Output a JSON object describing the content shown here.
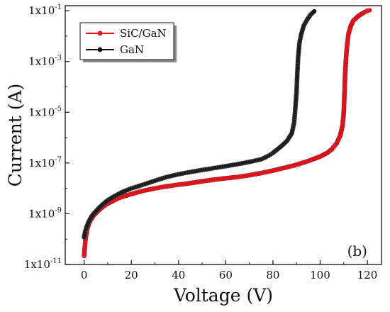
{
  "chart_data": {
    "type": "scatter",
    "xlabel": "Voltage (V)",
    "ylabel": "Current (A)",
    "xlim": [
      -8,
      126
    ],
    "ylim_log10": [
      -11,
      -0.8
    ],
    "y_scale": "log",
    "x_ticks": [
      0,
      20,
      40,
      60,
      80,
      100,
      120
    ],
    "x_tick_labels": [
      "0",
      "20",
      "40",
      "60",
      "80",
      "100",
      "120"
    ],
    "y_ticks_log10": [
      -11,
      -9,
      -7,
      -5,
      -3,
      -1
    ],
    "y_tick_labels": [
      {
        "base": "1x10",
        "exp": "-11"
      },
      {
        "base": "1x10",
        "exp": "-9"
      },
      {
        "base": "1x10",
        "exp": "-7"
      },
      {
        "base": "1x10",
        "exp": "-5"
      },
      {
        "base": "1x10",
        "exp": "-3"
      },
      {
        "base": "1x10",
        "exp": "-1"
      }
    ],
    "panel_label": "(b)",
    "legend_position": "top-left",
    "series": [
      {
        "name": "SiC/GaN",
        "color": "#e8141e",
        "points": [
          [
            0,
            2.2e-11
          ],
          [
            0.3,
            5e-11
          ],
          [
            0.6,
            1e-10
          ],
          [
            1,
            1.8e-10
          ],
          [
            1.5,
            2.8e-10
          ],
          [
            2,
            4e-10
          ],
          [
            3,
            6e-10
          ],
          [
            4,
            8.5e-10
          ],
          [
            6,
            1.3e-09
          ],
          [
            8,
            1.9e-09
          ],
          [
            10,
            2.5e-09
          ],
          [
            13,
            3.5e-09
          ],
          [
            16,
            4.6e-09
          ],
          [
            20,
            6e-09
          ],
          [
            25,
            8e-09
          ],
          [
            30,
            1e-08
          ],
          [
            35,
            1.2e-08
          ],
          [
            40,
            1.4e-08
          ],
          [
            45,
            1.6e-08
          ],
          [
            50,
            1.9e-08
          ],
          [
            55,
            2.2e-08
          ],
          [
            60,
            2.5e-08
          ],
          [
            65,
            2.8e-08
          ],
          [
            70,
            3.3e-08
          ],
          [
            75,
            4e-08
          ],
          [
            80,
            5e-08
          ],
          [
            85,
            6.5e-08
          ],
          [
            90,
            8.5e-08
          ],
          [
            95,
            1.2e-07
          ],
          [
            100,
            1.8e-07
          ],
          [
            103,
            2.5e-07
          ],
          [
            105,
            3.5e-07
          ],
          [
            107,
            6e-07
          ],
          [
            108.5,
            1.2e-06
          ],
          [
            109.5,
            3e-06
          ],
          [
            110,
            1e-05
          ],
          [
            110.3,
            5e-05
          ],
          [
            110.6,
            0.0003
          ],
          [
            111,
            0.0015
          ],
          [
            111.5,
            0.005
          ],
          [
            112,
            0.012
          ],
          [
            113,
            0.025
          ],
          [
            114,
            0.04
          ],
          [
            116,
            0.06
          ],
          [
            118,
            0.08
          ],
          [
            120,
            0.1
          ],
          [
            121,
            0.105
          ]
        ]
      },
      {
        "name": "GaN",
        "color": "#111111",
        "points": [
          [
            0,
            1.2e-10
          ],
          [
            0.5,
            2e-10
          ],
          [
            1,
            3e-10
          ],
          [
            2,
            5e-10
          ],
          [
            3,
            7.5e-10
          ],
          [
            4,
            1e-09
          ],
          [
            6,
            1.6e-09
          ],
          [
            8,
            2.4e-09
          ],
          [
            10,
            3.4e-09
          ],
          [
            13,
            5e-09
          ],
          [
            16,
            7e-09
          ],
          [
            20,
            1e-08
          ],
          [
            25,
            1.4e-08
          ],
          [
            30,
            2e-08
          ],
          [
            35,
            2.8e-08
          ],
          [
            40,
            3.6e-08
          ],
          [
            45,
            4.4e-08
          ],
          [
            50,
            5.3e-08
          ],
          [
            55,
            6.3e-08
          ],
          [
            60,
            7.5e-08
          ],
          [
            65,
            9e-08
          ],
          [
            70,
            1.1e-07
          ],
          [
            75,
            1.4e-07
          ],
          [
            78,
            1.9e-07
          ],
          [
            80,
            2.5e-07
          ],
          [
            82,
            3.5e-07
          ],
          [
            84,
            5e-07
          ],
          [
            86,
            7.5e-07
          ],
          [
            88,
            1.5e-06
          ],
          [
            89,
            4e-06
          ],
          [
            89.5,
            1.5e-05
          ],
          [
            90,
            6e-05
          ],
          [
            90.3,
            0.0003
          ],
          [
            90.7,
            0.0015
          ],
          [
            91.2,
            0.005
          ],
          [
            92,
            0.012
          ],
          [
            93,
            0.025
          ],
          [
            94.5,
            0.045
          ],
          [
            96,
            0.07
          ],
          [
            97.5,
            0.095
          ]
        ]
      }
    ]
  }
}
